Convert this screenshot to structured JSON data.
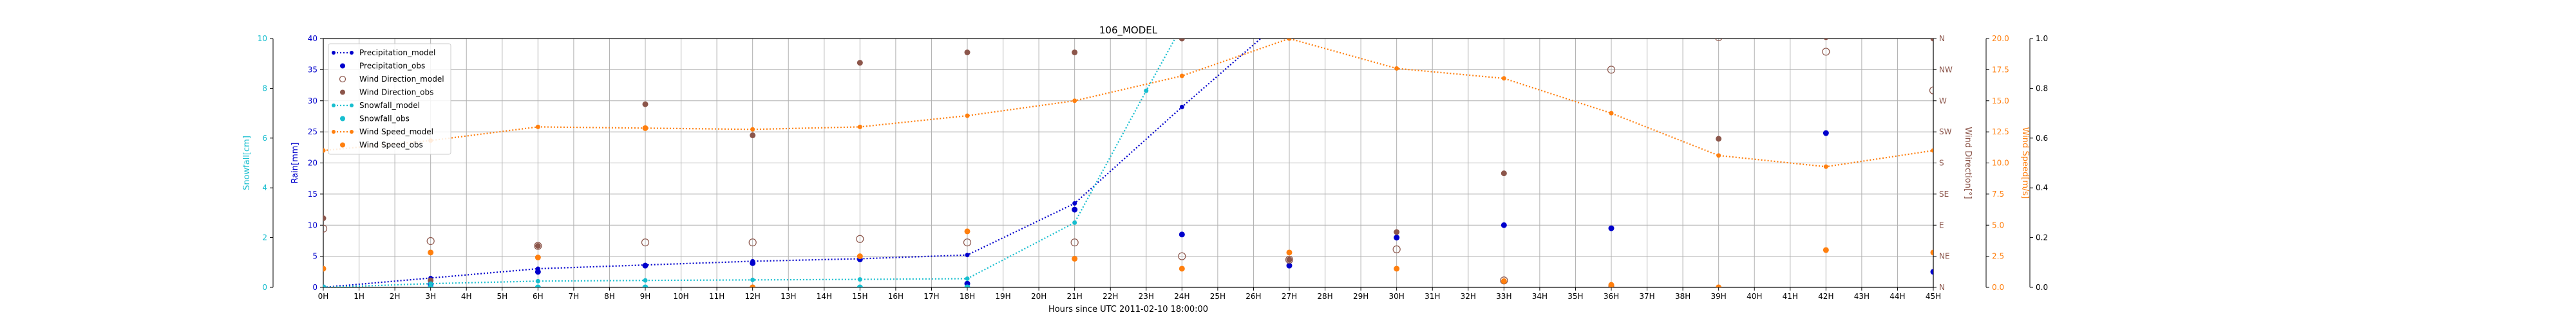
{
  "chart_data": {
    "type": "line",
    "title": "106_MODEL",
    "xlabel": "Hours since UTC 2011-02-10 18:00:00",
    "xlim": [
      0,
      45
    ],
    "x_ticks": [
      0,
      1,
      2,
      3,
      4,
      5,
      6,
      7,
      8,
      9,
      10,
      11,
      12,
      13,
      14,
      15,
      16,
      17,
      18,
      19,
      20,
      21,
      22,
      23,
      24,
      25,
      26,
      27,
      28,
      29,
      30,
      31,
      32,
      33,
      34,
      35,
      36,
      37,
      38,
      39,
      40,
      41,
      42,
      43,
      44,
      45
    ],
    "x_tick_labels": [
      "0H",
      "1H",
      "2H",
      "3H",
      "4H",
      "5H",
      "6H",
      "7H",
      "8H",
      "9H",
      "10H",
      "11H",
      "12H",
      "13H",
      "14H",
      "15H",
      "16H",
      "17H",
      "18H",
      "19H",
      "20H",
      "21H",
      "22H",
      "23H",
      "24H",
      "25H",
      "26H",
      "27H",
      "28H",
      "29H",
      "30H",
      "31H",
      "32H",
      "33H",
      "34H",
      "35H",
      "36H",
      "37H",
      "38H",
      "39H",
      "40H",
      "41H",
      "42H",
      "43H",
      "44H",
      "45H"
    ],
    "grid": true,
    "legend_position": "top-left",
    "axes": {
      "rain": {
        "label": "Rain[mm]",
        "side": "left",
        "color": "#0000cc",
        "ylim": [
          0,
          40
        ],
        "ticks": [
          0,
          5,
          10,
          15,
          20,
          25,
          30,
          35,
          40
        ],
        "tick_labels": [
          "0",
          "5",
          "10",
          "15",
          "20",
          "25",
          "30",
          "35",
          "40"
        ]
      },
      "snow": {
        "label": "Snowfall[cm]",
        "side": "left-outer",
        "color": "#17becf",
        "ylim": [
          0,
          10
        ],
        "ticks": [
          0,
          2,
          4,
          6,
          8,
          10
        ],
        "tick_labels": [
          "0",
          "2",
          "4",
          "6",
          "8",
          "10"
        ]
      },
      "wind_dir": {
        "label": "Wind Direction[°]",
        "side": "right",
        "color": "#8c564b",
        "ylim": [
          0,
          360
        ],
        "ticks": [
          0,
          45,
          90,
          135,
          180,
          225,
          270,
          315,
          360
        ],
        "tick_labels": [
          "N",
          "NE",
          "E",
          "SE",
          "S",
          "SW",
          "W",
          "NW",
          "N"
        ]
      },
      "wind_speed": {
        "label": "Wind Speed[m/s]",
        "side": "right-outer",
        "color": "#ff7f0e",
        "ylim": [
          0,
          20
        ],
        "ticks": [
          0,
          2.5,
          5,
          7.5,
          10,
          12.5,
          15,
          17.5,
          20
        ],
        "tick_labels": [
          "0.0",
          "2.5",
          "5.0",
          "7.5",
          "10.0",
          "12.5",
          "15.0",
          "17.5",
          "20.0"
        ]
      },
      "extra": {
        "side": "right-far",
        "color": "#000000",
        "ylim": [
          0,
          1
        ],
        "ticks": [
          0,
          0.2,
          0.4,
          0.6,
          0.8,
          1.0
        ],
        "tick_labels": [
          "0.0",
          "0.2",
          "0.4",
          "0.6",
          "0.8",
          "1.0"
        ]
      }
    },
    "series": [
      {
        "name": "Precipitation_model",
        "axis": "rain",
        "kind": "line-marker",
        "color": "#0000cc",
        "x": [
          0,
          3,
          6,
          9,
          12,
          15,
          18,
          21,
          24,
          27
        ],
        "y": [
          0,
          1.5,
          3,
          3.6,
          4.2,
          4.6,
          5.2,
          13.5,
          29,
          44
        ]
      },
      {
        "name": "Precipitation_obs",
        "axis": "rain",
        "kind": "point",
        "color": "#0000cc",
        "x": [
          0,
          3,
          6,
          9,
          12,
          15,
          18,
          21,
          24,
          27,
          30,
          33,
          36,
          42,
          45
        ],
        "y": [
          0,
          0.5,
          2.5,
          3.5,
          3.9,
          4.5,
          0.6,
          12.5,
          8.5,
          3.5,
          8,
          10,
          9.5,
          24.8,
          2.5
        ]
      },
      {
        "name": "Wind Direction_model",
        "axis": "wind_dir",
        "kind": "open-point",
        "color": "#8c564b",
        "x": [
          0,
          3,
          6,
          9,
          12,
          15,
          18,
          21,
          24,
          27,
          30,
          33,
          36,
          39,
          42,
          45
        ],
        "y": [
          85,
          67,
          60,
          65,
          65,
          70,
          65,
          65,
          45,
          40,
          55,
          10,
          315,
          362,
          341,
          285
        ]
      },
      {
        "name": "Wind Direction_obs",
        "axis": "wind_dir",
        "kind": "point",
        "color": "#8c564b",
        "x": [
          0,
          3,
          6,
          9,
          12,
          15,
          18,
          21,
          24,
          27,
          30,
          33,
          36,
          39,
          42,
          45
        ],
        "y": [
          100,
          10,
          60,
          265,
          220,
          325,
          340,
          340,
          360,
          40,
          80,
          165,
          2,
          215,
          362,
          360
        ]
      },
      {
        "name": "Snowfall_model",
        "axis": "snow",
        "kind": "line-marker",
        "color": "#17becf",
        "x": [
          0,
          3,
          6,
          9,
          12,
          15,
          18,
          21,
          23,
          24
        ],
        "y": [
          0,
          0.15,
          0.25,
          0.28,
          0.3,
          0.32,
          0.35,
          2.6,
          7.9,
          10.5
        ]
      },
      {
        "name": "Snowfall_obs",
        "axis": "snow",
        "kind": "point",
        "color": "#17becf",
        "x": [
          0,
          3,
          6,
          9,
          12,
          15,
          18
        ],
        "y": [
          0,
          0,
          0,
          0,
          0,
          0,
          0
        ]
      },
      {
        "name": "Wind Speed_model",
        "axis": "wind_speed",
        "kind": "line-marker",
        "color": "#ff7f0e",
        "x": [
          0,
          3,
          6,
          9,
          12,
          15,
          18,
          21,
          24,
          27,
          30,
          33,
          36,
          39,
          42,
          45
        ],
        "y": [
          11,
          11.8,
          12.9,
          12.8,
          12.7,
          12.9,
          13.8,
          15,
          17,
          20,
          17.6,
          16.8,
          14,
          10.6,
          9.7,
          11
        ]
      },
      {
        "name": "Wind Speed_obs",
        "axis": "wind_speed",
        "kind": "point",
        "color": "#ff7f0e",
        "x": [
          0,
          3,
          6,
          9,
          12,
          15,
          18,
          21,
          24,
          27,
          30,
          33,
          36,
          39,
          42,
          45
        ],
        "y": [
          1.5,
          2.8,
          2.4,
          12.8,
          0,
          2.5,
          4.5,
          2.3,
          1.5,
          2.8,
          1.5,
          0.5,
          0.2,
          0,
          3,
          2.8
        ]
      }
    ]
  }
}
